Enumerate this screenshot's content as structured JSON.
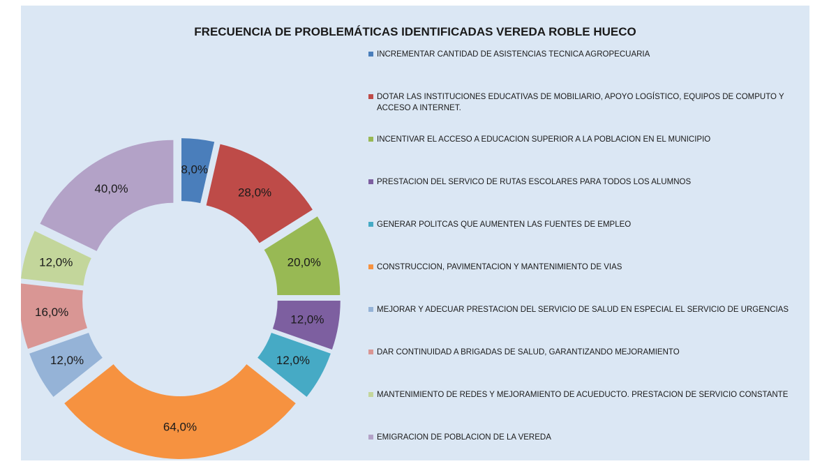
{
  "chart_data": {
    "type": "doughnut",
    "title": "FRECUENCIA DE PROBLEMÁTICAS IDENTIFICADAS  VEREDA ROBLE HUECO",
    "categories": [
      "INCREMENTAR CANTIDAD DE  ASISTENCIAS TECNICA AGROPECUARIA",
      "DOTAR LAS INSTITUCIONES EDUCATIVAS DE MOBILIARIO, APOYO LOGÍSTICO, EQUIPOS DE COMPUTO Y ACCESO A INTERNET.",
      "INCENTIVAR EL ACCESO A EDUCACION SUPERIOR A LA POBLACION EN EL MUNICIPIO",
      "PRESTACION DEL SERVICO DE RUTAS ESCOLARES PARA TODOS LOS ALUMNOS",
      "GENERAR POLITCAS QUE AUMENTEN LAS FUENTES DE EMPLEO",
      "CONSTRUCCION, PAVIMENTACION Y MANTENIMIENTO DE VIAS",
      "MEJORAR Y ADECUAR PRESTACION DEL SERVICIO DE SALUD EN ESPECIAL EL SERVICIO DE URGENCIAS",
      "DAR CONTINUIDAD A BRIGADAS DE SALUD, GARANTIZANDO MEJORAMIENTO",
      "MANTENIMIENTO DE REDES Y MEJORAMIENTO DE ACUEDUCTO. PRESTACION DE SERVICIO CONSTANTE",
      "EMIGRACION DE POBLACION DE LA VEREDA"
    ],
    "values": [
      8,
      28,
      20,
      12,
      12,
      64,
      12,
      16,
      12,
      40
    ],
    "value_labels": [
      "8,0%",
      "28,0%",
      "20,0%",
      "12,0%",
      "12,0%",
      "64,0%",
      "12,0%",
      "16,0%",
      "12,0%",
      "40,0%"
    ],
    "colors": [
      "#4a7ebb",
      "#be4b48",
      "#98b954",
      "#7d5fa0",
      "#46aac5",
      "#f69240",
      "#95b3d7",
      "#d99694",
      "#c3d69b",
      "#b3a2c7"
    ]
  }
}
